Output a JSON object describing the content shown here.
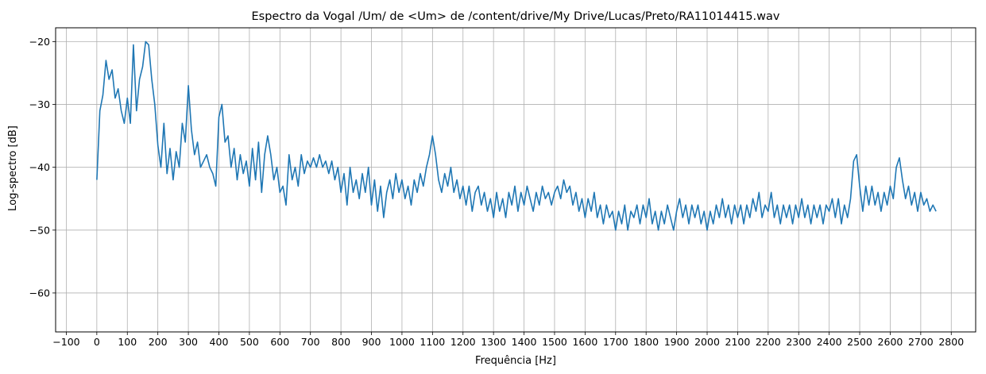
{
  "chart_data": {
    "type": "line",
    "title": "Espectro da Vogal /Um/ de <Um> de /content/drive/My Drive/Lucas/Preto/RA11014415.wav",
    "xlabel": "Frequência [Hz]",
    "ylabel": "Log-spectro [dB]",
    "xlim": [
      -135,
      2880
    ],
    "ylim": [
      -66.2,
      -17.8
    ],
    "grid": true,
    "x_ticks": [
      -100,
      0,
      100,
      200,
      300,
      400,
      500,
      600,
      700,
      800,
      900,
      1000,
      1100,
      1200,
      1300,
      1400,
      1500,
      1600,
      1700,
      1800,
      1900,
      2000,
      2100,
      2200,
      2300,
      2400,
      2500,
      2600,
      2700,
      2800
    ],
    "x_tick_labels": [
      "−100",
      "0",
      "100",
      "200",
      "300",
      "400",
      "500",
      "600",
      "700",
      "800",
      "900",
      "1000",
      "1100",
      "1200",
      "1300",
      "1400",
      "1500",
      "1600",
      "1700",
      "1800",
      "1900",
      "2000",
      "2100",
      "2200",
      "2300",
      "2400",
      "2500",
      "2600",
      "2700",
      "2800"
    ],
    "y_ticks": [
      -60,
      -50,
      -40,
      -30,
      -20
    ],
    "y_tick_labels": [
      "−60",
      "−50",
      "−40",
      "−30",
      "−20"
    ],
    "series": [
      {
        "color": "#1f77b4",
        "points": [
          [
            0,
            -42
          ],
          [
            10,
            -31
          ],
          [
            20,
            -28.5
          ],
          [
            30,
            -23
          ],
          [
            40,
            -26
          ],
          [
            50,
            -24.5
          ],
          [
            60,
            -29
          ],
          [
            70,
            -27.5
          ],
          [
            80,
            -31
          ],
          [
            90,
            -33
          ],
          [
            100,
            -29
          ],
          [
            110,
            -33
          ],
          [
            120,
            -20.5
          ],
          [
            130,
            -31
          ],
          [
            140,
            -26
          ],
          [
            150,
            -24
          ],
          [
            160,
            -20
          ],
          [
            170,
            -20.5
          ],
          [
            180,
            -26
          ],
          [
            190,
            -30
          ],
          [
            200,
            -36.5
          ],
          [
            210,
            -40
          ],
          [
            220,
            -33
          ],
          [
            230,
            -41
          ],
          [
            240,
            -37
          ],
          [
            250,
            -42
          ],
          [
            260,
            -37.5
          ],
          [
            270,
            -40
          ],
          [
            280,
            -33
          ],
          [
            290,
            -36
          ],
          [
            300,
            -27
          ],
          [
            310,
            -34
          ],
          [
            320,
            -38
          ],
          [
            330,
            -36
          ],
          [
            340,
            -40
          ],
          [
            350,
            -39
          ],
          [
            360,
            -38
          ],
          [
            370,
            -40
          ],
          [
            380,
            -41
          ],
          [
            390,
            -43
          ],
          [
            400,
            -32
          ],
          [
            410,
            -30
          ],
          [
            420,
            -36
          ],
          [
            430,
            -35
          ],
          [
            440,
            -40
          ],
          [
            450,
            -37
          ],
          [
            460,
            -42
          ],
          [
            470,
            -38
          ],
          [
            480,
            -41
          ],
          [
            490,
            -39
          ],
          [
            500,
            -43
          ],
          [
            510,
            -37
          ],
          [
            520,
            -42
          ],
          [
            530,
            -36
          ],
          [
            540,
            -44
          ],
          [
            550,
            -38
          ],
          [
            560,
            -35
          ],
          [
            570,
            -38
          ],
          [
            580,
            -42
          ],
          [
            590,
            -40
          ],
          [
            600,
            -44
          ],
          [
            610,
            -43
          ],
          [
            620,
            -46
          ],
          [
            630,
            -38
          ],
          [
            640,
            -42
          ],
          [
            650,
            -40
          ],
          [
            660,
            -43
          ],
          [
            670,
            -38
          ],
          [
            680,
            -41
          ],
          [
            690,
            -39
          ],
          [
            700,
            -40
          ],
          [
            710,
            -38.5
          ],
          [
            720,
            -40
          ],
          [
            730,
            -38
          ],
          [
            740,
            -40
          ],
          [
            750,
            -39
          ],
          [
            760,
            -41
          ],
          [
            770,
            -39
          ],
          [
            780,
            -42
          ],
          [
            790,
            -40
          ],
          [
            800,
            -44
          ],
          [
            810,
            -41
          ],
          [
            820,
            -46
          ],
          [
            830,
            -40
          ],
          [
            840,
            -44
          ],
          [
            850,
            -42
          ],
          [
            860,
            -45
          ],
          [
            870,
            -41
          ],
          [
            880,
            -44
          ],
          [
            890,
            -40
          ],
          [
            900,
            -46
          ],
          [
            910,
            -42
          ],
          [
            920,
            -47
          ],
          [
            930,
            -43
          ],
          [
            940,
            -48
          ],
          [
            950,
            -44
          ],
          [
            960,
            -42
          ],
          [
            970,
            -45
          ],
          [
            980,
            -41
          ],
          [
            990,
            -44
          ],
          [
            1000,
            -42
          ],
          [
            1010,
            -45
          ],
          [
            1020,
            -43
          ],
          [
            1030,
            -46
          ],
          [
            1040,
            -42
          ],
          [
            1050,
            -44
          ],
          [
            1060,
            -41
          ],
          [
            1070,
            -43
          ],
          [
            1080,
            -40
          ],
          [
            1090,
            -38
          ],
          [
            1100,
            -35
          ],
          [
            1110,
            -38
          ],
          [
            1120,
            -42
          ],
          [
            1130,
            -44
          ],
          [
            1140,
            -41
          ],
          [
            1150,
            -43
          ],
          [
            1160,
            -40
          ],
          [
            1170,
            -44
          ],
          [
            1180,
            -42
          ],
          [
            1190,
            -45
          ],
          [
            1200,
            -43
          ],
          [
            1210,
            -46
          ],
          [
            1220,
            -43
          ],
          [
            1230,
            -47
          ],
          [
            1240,
            -44
          ],
          [
            1250,
            -43
          ],
          [
            1260,
            -46
          ],
          [
            1270,
            -44
          ],
          [
            1280,
            -47
          ],
          [
            1290,
            -45
          ],
          [
            1300,
            -48
          ],
          [
            1310,
            -44
          ],
          [
            1320,
            -47
          ],
          [
            1330,
            -45
          ],
          [
            1340,
            -48
          ],
          [
            1350,
            -44
          ],
          [
            1360,
            -46
          ],
          [
            1370,
            -43
          ],
          [
            1380,
            -47
          ],
          [
            1390,
            -44
          ],
          [
            1400,
            -46
          ],
          [
            1410,
            -43
          ],
          [
            1420,
            -45
          ],
          [
            1430,
            -47
          ],
          [
            1440,
            -44
          ],
          [
            1450,
            -46
          ],
          [
            1460,
            -43
          ],
          [
            1470,
            -45
          ],
          [
            1480,
            -44
          ],
          [
            1490,
            -46
          ],
          [
            1500,
            -44
          ],
          [
            1510,
            -43
          ],
          [
            1520,
            -45
          ],
          [
            1530,
            -42
          ],
          [
            1540,
            -44
          ],
          [
            1550,
            -43
          ],
          [
            1560,
            -46
          ],
          [
            1570,
            -44
          ],
          [
            1580,
            -47
          ],
          [
            1590,
            -45
          ],
          [
            1600,
            -48
          ],
          [
            1610,
            -45
          ],
          [
            1620,
            -47
          ],
          [
            1630,
            -44
          ],
          [
            1640,
            -48
          ],
          [
            1650,
            -46
          ],
          [
            1660,
            -49
          ],
          [
            1670,
            -46
          ],
          [
            1680,
            -48
          ],
          [
            1690,
            -47
          ],
          [
            1700,
            -50
          ],
          [
            1710,
            -47
          ],
          [
            1720,
            -49
          ],
          [
            1730,
            -46
          ],
          [
            1740,
            -50
          ],
          [
            1750,
            -47
          ],
          [
            1760,
            -48
          ],
          [
            1770,
            -46
          ],
          [
            1780,
            -49
          ],
          [
            1790,
            -46
          ],
          [
            1800,
            -48
          ],
          [
            1810,
            -45
          ],
          [
            1820,
            -49
          ],
          [
            1830,
            -47
          ],
          [
            1840,
            -50
          ],
          [
            1850,
            -47
          ],
          [
            1860,
            -49
          ],
          [
            1870,
            -46
          ],
          [
            1880,
            -48
          ],
          [
            1890,
            -50
          ],
          [
            1900,
            -47
          ],
          [
            1910,
            -45
          ],
          [
            1920,
            -48
          ],
          [
            1930,
            -46
          ],
          [
            1940,
            -49
          ],
          [
            1950,
            -46
          ],
          [
            1960,
            -48
          ],
          [
            1970,
            -46
          ],
          [
            1980,
            -49
          ],
          [
            1990,
            -47
          ],
          [
            2000,
            -50
          ],
          [
            2010,
            -47
          ],
          [
            2020,
            -49
          ],
          [
            2030,
            -46
          ],
          [
            2040,
            -48
          ],
          [
            2050,
            -45
          ],
          [
            2060,
            -48
          ],
          [
            2070,
            -46
          ],
          [
            2080,
            -49
          ],
          [
            2090,
            -46
          ],
          [
            2100,
            -48
          ],
          [
            2110,
            -46
          ],
          [
            2120,
            -49
          ],
          [
            2130,
            -46
          ],
          [
            2140,
            -48
          ],
          [
            2150,
            -45
          ],
          [
            2160,
            -47
          ],
          [
            2170,
            -44
          ],
          [
            2180,
            -48
          ],
          [
            2190,
            -46
          ],
          [
            2200,
            -47
          ],
          [
            2210,
            -44
          ],
          [
            2220,
            -48
          ],
          [
            2230,
            -46
          ],
          [
            2240,
            -49
          ],
          [
            2250,
            -46
          ],
          [
            2260,
            -48
          ],
          [
            2270,
            -46
          ],
          [
            2280,
            -49
          ],
          [
            2290,
            -46
          ],
          [
            2300,
            -48
          ],
          [
            2310,
            -45
          ],
          [
            2320,
            -48
          ],
          [
            2330,
            -46
          ],
          [
            2340,
            -49
          ],
          [
            2350,
            -46
          ],
          [
            2360,
            -48
          ],
          [
            2370,
            -46
          ],
          [
            2380,
            -49
          ],
          [
            2390,
            -46
          ],
          [
            2400,
            -47
          ],
          [
            2410,
            -45
          ],
          [
            2420,
            -48
          ],
          [
            2430,
            -45
          ],
          [
            2440,
            -49
          ],
          [
            2450,
            -46
          ],
          [
            2460,
            -48
          ],
          [
            2470,
            -45
          ],
          [
            2480,
            -39
          ],
          [
            2490,
            -38
          ],
          [
            2500,
            -43
          ],
          [
            2510,
            -47
          ],
          [
            2520,
            -43
          ],
          [
            2530,
            -46
          ],
          [
            2540,
            -43
          ],
          [
            2550,
            -46
          ],
          [
            2560,
            -44
          ],
          [
            2570,
            -47
          ],
          [
            2580,
            -44
          ],
          [
            2590,
            -46
          ],
          [
            2600,
            -43
          ],
          [
            2610,
            -45
          ],
          [
            2620,
            -40
          ],
          [
            2630,
            -38.5
          ],
          [
            2640,
            -42
          ],
          [
            2650,
            -45
          ],
          [
            2660,
            -43
          ],
          [
            2670,
            -46
          ],
          [
            2680,
            -44
          ],
          [
            2690,
            -47
          ],
          [
            2700,
            -44
          ],
          [
            2710,
            -46
          ],
          [
            2720,
            -45
          ],
          [
            2730,
            -47
          ],
          [
            2740,
            -46
          ],
          [
            2750,
            -47
          ]
        ]
      }
    ]
  }
}
